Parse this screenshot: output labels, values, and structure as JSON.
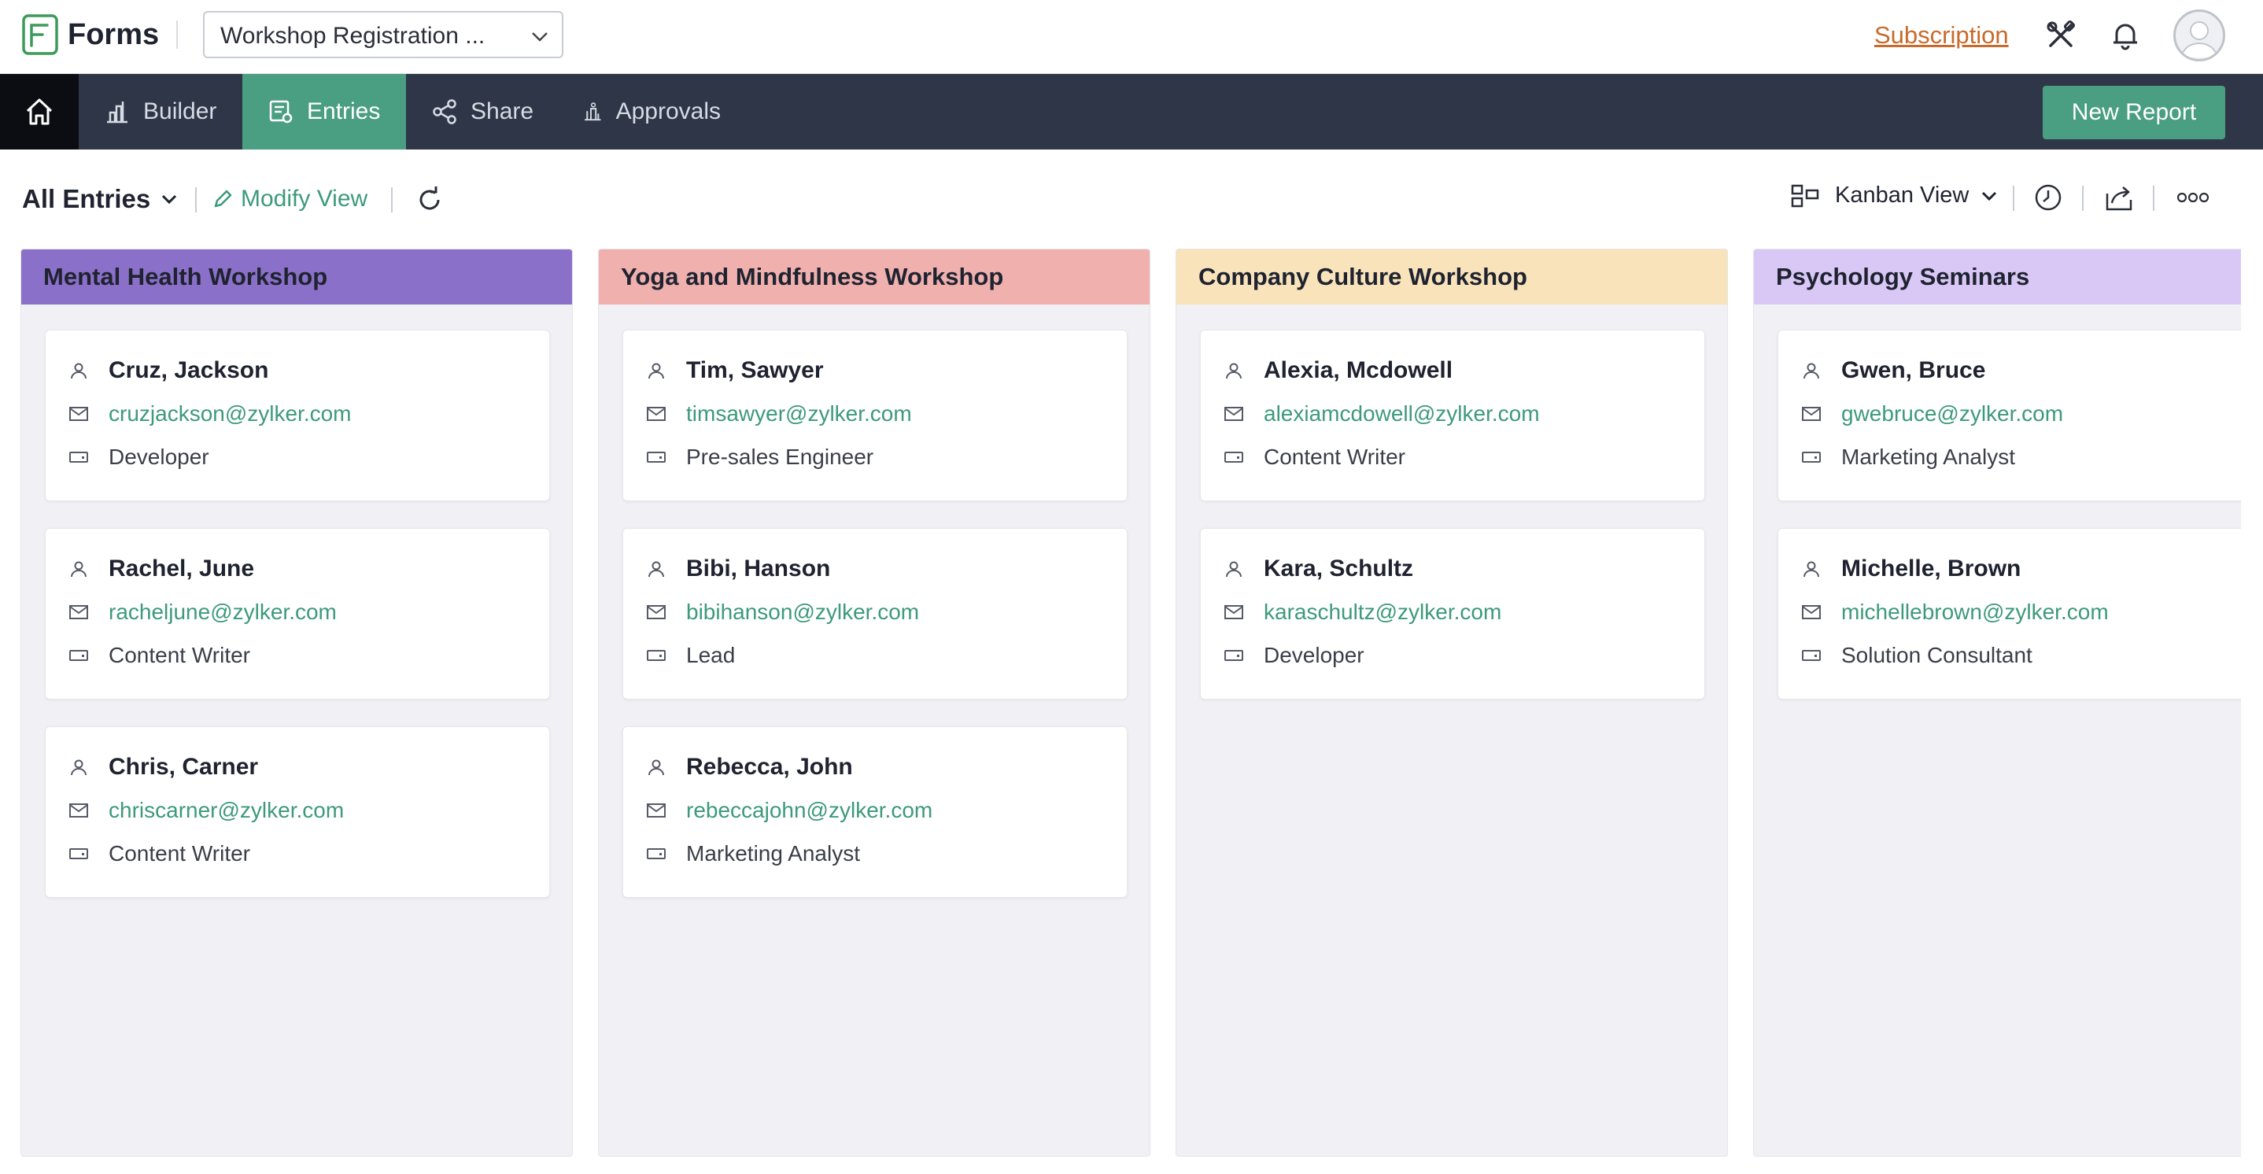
{
  "app": {
    "name": "Forms",
    "form_selector_value": "Workshop Registration ..."
  },
  "topbar": {
    "subscription_link": "Subscription"
  },
  "nav": {
    "items": [
      {
        "label": "Builder"
      },
      {
        "label": "Entries"
      },
      {
        "label": "Share"
      },
      {
        "label": "Approvals"
      }
    ],
    "new_report_label": "New Report"
  },
  "toolbar": {
    "view_selector": "All Entries",
    "modify_view": "Modify View",
    "layout_selector": "Kanban View"
  },
  "colors": {
    "accent": "#4a9e81",
    "nav_bg": "#2e3648",
    "mental_health": "#8a70c8",
    "yoga": "#efb0ae",
    "company_culture": "#f9e3bb",
    "psychology": "#d9c8f6"
  },
  "columns": [
    {
      "title": "Mental Health Workshop",
      "cards": [
        {
          "name": "Cruz, Jackson",
          "email": "cruzjackson@zylker.com",
          "role": "Developer"
        },
        {
          "name": "Rachel, June",
          "email": "racheljune@zylker.com",
          "role": "Content Writer"
        },
        {
          "name": "Chris, Carner",
          "email": "chriscarner@zylker.com",
          "role": "Content Writer"
        }
      ]
    },
    {
      "title": "Yoga and Mindfulness Workshop",
      "cards": [
        {
          "name": "Tim, Sawyer",
          "email": "timsawyer@zylker.com",
          "role": "Pre-sales Engineer"
        },
        {
          "name": "Bibi, Hanson",
          "email": "bibihanson@zylker.com",
          "role": "Lead"
        },
        {
          "name": "Rebecca, John",
          "email": "rebeccajohn@zylker.com",
          "role": "Marketing Analyst"
        }
      ]
    },
    {
      "title": "Company Culture Workshop",
      "cards": [
        {
          "name": "Alexia, Mcdowell",
          "email": "alexiamcdowell@zylker.com",
          "role": "Content Writer"
        },
        {
          "name": "Kara, Schultz",
          "email": "karaschultz@zylker.com",
          "role": "Developer"
        }
      ]
    },
    {
      "title": "Psychology Seminars",
      "cards": [
        {
          "name": "Gwen, Bruce",
          "email": "gwebruce@zylker.com",
          "role": "Marketing Analyst"
        },
        {
          "name": "Michelle, Brown",
          "email": "michellebrown@zylker.com",
          "role": "Solution Consultant"
        }
      ]
    }
  ]
}
